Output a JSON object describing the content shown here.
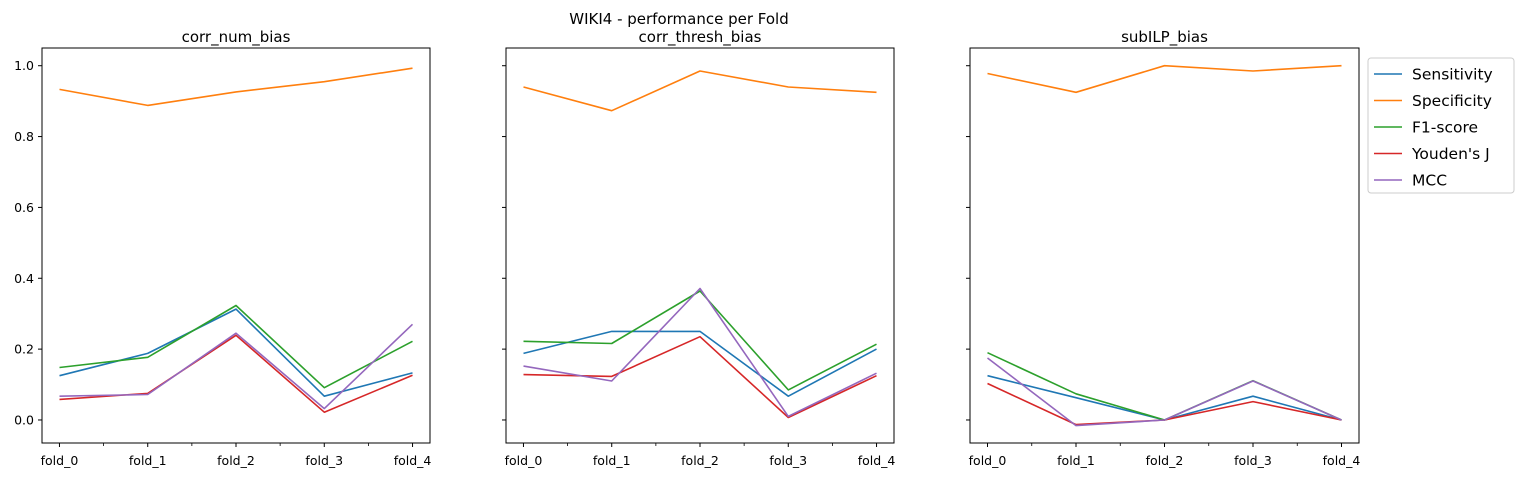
{
  "suptitle": "WIKI4 - performance per Fold",
  "chart_data": [
    {
      "type": "line",
      "title": "corr_num_bias",
      "xlabel": "",
      "ylabel": "",
      "categories": [
        "fold_0",
        "fold_1",
        "fold_2",
        "fold_3",
        "fold_4"
      ],
      "ylim": [
        -0.065,
        1.05
      ],
      "yticks": [
        "0.0",
        "0.2",
        "0.4",
        "0.6",
        "0.8",
        "1.0"
      ],
      "series": [
        {
          "name": "Sensitivity",
          "color": "#1f77b4",
          "values": [
            0.125,
            0.188,
            0.313,
            0.067,
            0.133
          ]
        },
        {
          "name": "Specificity",
          "color": "#ff7f0e",
          "values": [
            0.933,
            0.888,
            0.926,
            0.955,
            0.993
          ]
        },
        {
          "name": "F1-score",
          "color": "#2ca02c",
          "values": [
            0.148,
            0.177,
            0.323,
            0.091,
            0.222
          ]
        },
        {
          "name": "Youden's J",
          "color": "#d62728",
          "values": [
            0.058,
            0.075,
            0.239,
            0.022,
            0.126
          ]
        },
        {
          "name": "MCC",
          "color": "#9467bd",
          "values": [
            0.067,
            0.072,
            0.245,
            0.032,
            0.27
          ]
        }
      ]
    },
    {
      "type": "line",
      "title": "corr_thresh_bias",
      "xlabel": "",
      "ylabel": "",
      "categories": [
        "fold_0",
        "fold_1",
        "fold_2",
        "fold_3",
        "fold_4"
      ],
      "ylim": [
        -0.065,
        1.05
      ],
      "series": [
        {
          "name": "Sensitivity",
          "color": "#1f77b4",
          "values": [
            0.188,
            0.25,
            0.25,
            0.067,
            0.2
          ]
        },
        {
          "name": "Specificity",
          "color": "#ff7f0e",
          "values": [
            0.94,
            0.873,
            0.985,
            0.94,
            0.925
          ]
        },
        {
          "name": "F1-score",
          "color": "#2ca02c",
          "values": [
            0.222,
            0.216,
            0.364,
            0.085,
            0.214
          ]
        },
        {
          "name": "Youden's J",
          "color": "#d62728",
          "values": [
            0.128,
            0.123,
            0.235,
            0.007,
            0.125
          ]
        },
        {
          "name": "MCC",
          "color": "#9467bd",
          "values": [
            0.152,
            0.11,
            0.371,
            0.01,
            0.132
          ]
        }
      ]
    },
    {
      "type": "line",
      "title": "subILP_bias",
      "xlabel": "",
      "ylabel": "",
      "categories": [
        "fold_0",
        "fold_1",
        "fold_2",
        "fold_3",
        "fold_4"
      ],
      "ylim": [
        -0.065,
        1.05
      ],
      "series": [
        {
          "name": "Sensitivity",
          "color": "#1f77b4",
          "values": [
            0.125,
            0.063,
            0.0,
            0.067,
            0.0
          ]
        },
        {
          "name": "Specificity",
          "color": "#ff7f0e",
          "values": [
            0.978,
            0.925,
            1.0,
            0.985,
            1.0
          ]
        },
        {
          "name": "F1-score",
          "color": "#2ca02c",
          "values": [
            0.19,
            0.074,
            0.0,
            0.111,
            0.0
          ]
        },
        {
          "name": "Youden's J",
          "color": "#d62728",
          "values": [
            0.103,
            -0.013,
            0.0,
            0.052,
            0.0
          ]
        },
        {
          "name": "MCC",
          "color": "#9467bd",
          "values": [
            0.175,
            -0.016,
            0.0,
            0.11,
            0.0
          ]
        }
      ]
    }
  ],
  "legend": {
    "placement": "right of third subplot, top",
    "entries": [
      {
        "label": "Sensitivity",
        "color": "#1f77b4"
      },
      {
        "label": "Specificity",
        "color": "#ff7f0e"
      },
      {
        "label": "F1-score",
        "color": "#2ca02c"
      },
      {
        "label": "Youden's J",
        "color": "#d62728"
      },
      {
        "label": "MCC",
        "color": "#9467bd"
      }
    ]
  }
}
